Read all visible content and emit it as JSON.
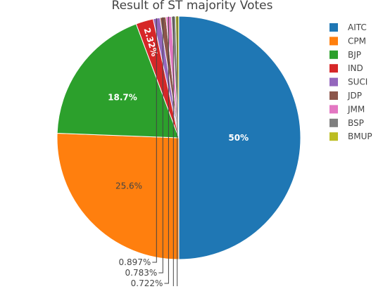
{
  "chart_data": {
    "type": "pie",
    "title": "Result of ST majority Votes",
    "legend_position": "right",
    "labels": [
      "AITC",
      "CPM",
      "BJP",
      "IND",
      "SUCI",
      "JDP",
      "JMM",
      "BSP",
      "BMUP"
    ],
    "values": [
      50,
      25.6,
      18.7,
      2.32,
      0.897,
      0.783,
      0.722,
      0.55,
      0.43
    ],
    "text_labels": [
      "50%",
      "25.6%",
      "18.7%",
      "2.32%",
      "0.897%",
      "0.783%",
      "0.722%",
      "",
      ""
    ],
    "colors": [
      "#1f77b4",
      "#ff7f0e",
      "#2ca02c",
      "#d62728",
      "#9467bd",
      "#8c564b",
      "#e377c2",
      "#7f7f7f",
      "#bcbd22"
    ],
    "direction": "clockwise",
    "start": "top"
  }
}
